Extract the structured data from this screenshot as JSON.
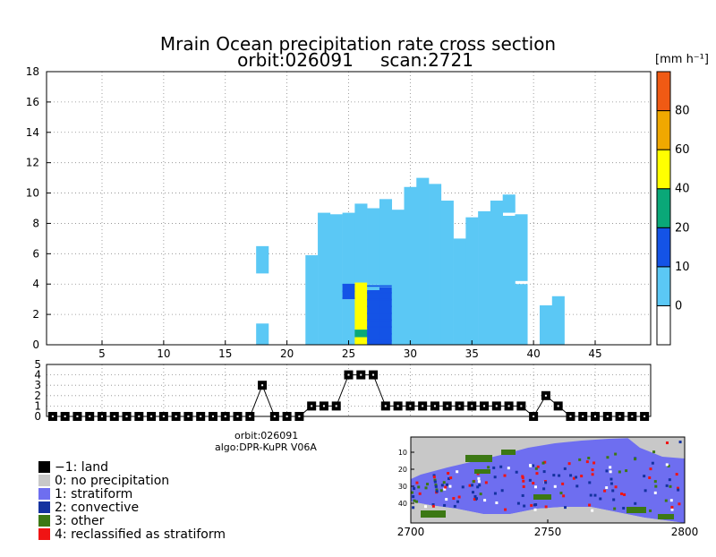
{
  "chart_data": [
    {
      "type": "heatmap",
      "name": "precipitation-cross-section",
      "title": "Mrain Ocean precipitation rate cross section",
      "subtitle_orbit": "orbit:026091",
      "subtitle_scan": "scan:2721",
      "x_range": [
        1,
        49
      ],
      "xlim": [
        0.5,
        49.5
      ],
      "ylim": [
        0,
        18
      ],
      "x_ticks": [
        5,
        10,
        15,
        20,
        25,
        30,
        35,
        40,
        45
      ],
      "y_ticks": [
        0,
        2,
        4,
        6,
        8,
        10,
        12,
        14,
        16,
        18
      ],
      "grid": true,
      "columns": [
        {
          "x": 18,
          "segs": [
            [
              0,
              1.4,
              1
            ],
            [
              4.7,
              6.5,
              1
            ]
          ]
        },
        {
          "x": 22,
          "segs": [
            [
              0,
              5.9,
              1
            ]
          ]
        },
        {
          "x": 23,
          "segs": [
            [
              0,
              8.7,
              1
            ]
          ]
        },
        {
          "x": 24,
          "segs": [
            [
              0,
              8.6,
              1
            ]
          ]
        },
        {
          "x": 25,
          "segs": [
            [
              0,
              3.0,
              1
            ],
            [
              3.0,
              4.0,
              2
            ],
            [
              4.0,
              8.7,
              1
            ]
          ]
        },
        {
          "x": 26,
          "segs": [
            [
              0,
              0.5,
              3
            ],
            [
              0.5,
              1.0,
              4
            ],
            [
              1.0,
              4.1,
              3
            ],
            [
              4.1,
              9.3,
              1
            ]
          ]
        },
        {
          "x": 27,
          "segs": [
            [
              0,
              3.6,
              2
            ],
            [
              3.6,
              4.0,
              1
            ],
            [
              4.0,
              9.0,
              1
            ]
          ]
        },
        {
          "x": 28,
          "segs": [
            [
              0,
              3.8,
              2
            ],
            [
              3.8,
              9.6,
              1
            ]
          ]
        },
        {
          "x": 29,
          "segs": [
            [
              0,
              8.9,
              1
            ]
          ]
        },
        {
          "x": 30,
          "segs": [
            [
              0,
              10.4,
              1
            ]
          ]
        },
        {
          "x": 31,
          "segs": [
            [
              0,
              11.0,
              1
            ]
          ]
        },
        {
          "x": 32,
          "segs": [
            [
              0,
              10.6,
              1
            ]
          ]
        },
        {
          "x": 33,
          "segs": [
            [
              0,
              9.5,
              1
            ]
          ]
        },
        {
          "x": 34,
          "segs": [
            [
              0,
              7.0,
              1
            ]
          ]
        },
        {
          "x": 35,
          "segs": [
            [
              0,
              8.4,
              1
            ]
          ]
        },
        {
          "x": 36,
          "segs": [
            [
              0,
              8.8,
              1
            ]
          ]
        },
        {
          "x": 37,
          "segs": [
            [
              0,
              9.5,
              1
            ]
          ]
        },
        {
          "x": 38,
          "segs": [
            [
              0,
              8.5,
              1
            ],
            [
              8.7,
              9.9,
              1
            ]
          ]
        },
        {
          "x": 39,
          "segs": [
            [
              0,
              4.0,
              1
            ],
            [
              4.2,
              8.6,
              1
            ]
          ]
        },
        {
          "x": 41,
          "segs": [
            [
              0,
              2.6,
              1
            ]
          ]
        },
        {
          "x": 42,
          "segs": [
            [
              0,
              3.2,
              1
            ]
          ]
        }
      ],
      "column_classes": {
        "1": "stratiform-light",
        "2": "blue-10-20",
        "3": "yellow-40-60",
        "4": "green-20-40"
      }
    },
    {
      "type": "line",
      "name": "rain-type-series",
      "ylim": [
        0,
        5
      ],
      "y_ticks": [
        0,
        1,
        2,
        3,
        4,
        5
      ],
      "x": [
        1,
        2,
        3,
        4,
        5,
        6,
        7,
        8,
        9,
        10,
        11,
        12,
        13,
        14,
        15,
        16,
        17,
        18,
        19,
        20,
        21,
        22,
        23,
        24,
        25,
        26,
        27,
        28,
        29,
        30,
        31,
        32,
        33,
        34,
        35,
        36,
        37,
        38,
        39,
        40,
        41,
        42,
        43,
        44,
        45,
        46,
        47,
        48,
        49
      ],
      "values": [
        0,
        0,
        0,
        0,
        0,
        0,
        0,
        0,
        0,
        0,
        0,
        0,
        0,
        0,
        0,
        0,
        0,
        3,
        0,
        0,
        0,
        1,
        1,
        1,
        4,
        4,
        4,
        1,
        1,
        1,
        1,
        1,
        1,
        1,
        1,
        1,
        1,
        1,
        1,
        0,
        2,
        1,
        0,
        0,
        0,
        0,
        0,
        0,
        0
      ]
    },
    {
      "type": "heatmap",
      "name": "rain-type-map",
      "xlim": [
        2700,
        2800
      ],
      "x_ticks": [
        2700,
        2750,
        2800
      ],
      "y_ticks": [
        10,
        20,
        30,
        40
      ]
    }
  ],
  "colorbar": {
    "unit": "[mm h⁻¹]",
    "labels": [
      "0",
      "10",
      "20",
      "40",
      "60",
      "80"
    ],
    "colors": [
      "#ffffff",
      "#5bc8f5",
      "#1453e6",
      "#0aa878",
      "#ffff00",
      "#f0a800",
      "#f05a14"
    ]
  },
  "info": {
    "orbit": "orbit:026091",
    "algo": "algo:DPR-KuPR V06A"
  },
  "legend": [
    {
      "label": "−1: land",
      "color": "#000000"
    },
    {
      "label": "0: no precipitation",
      "color": "#c8c8c8"
    },
    {
      "label": "1: stratiform",
      "color": "#6e6ef0"
    },
    {
      "label": "2: convective",
      "color": "#1432a0"
    },
    {
      "label": "3: other",
      "color": "#3c7814"
    },
    {
      "label": "4: reclassified as stratiform",
      "color": "#f01414"
    }
  ],
  "colors": {
    "light": "#5bc8f5",
    "blue": "#1453e6",
    "green": "#0aa878",
    "yellow": "#ffff00"
  }
}
